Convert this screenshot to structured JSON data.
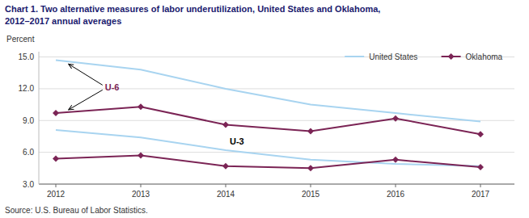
{
  "chart_data": {
    "type": "line",
    "title": "Chart 1. Two alternative measures of labor underutilization, United States and Oklahoma,",
    "subtitle": "2012–2017  annual averages",
    "y_label": "Percent",
    "source": "Source: U.S. Bureau of Labor Statistics.",
    "annotations": [
      "U-6",
      "U-3"
    ],
    "x": [
      2012,
      2013,
      2014,
      2015,
      2016,
      2017
    ],
    "series": [
      {
        "name": "United States",
        "color": "#a8d4f0",
        "values": [
          14.7,
          13.8,
          12.0,
          10.5,
          9.7,
          8.9
        ]
      },
      {
        "name": "United States",
        "color": "#a8d4f0",
        "values": [
          8.1,
          7.4,
          6.2,
          5.3,
          4.9,
          4.7
        ]
      },
      {
        "name": "Oklahoma",
        "color": "#7B2455",
        "marker": "diamond",
        "values": [
          9.7,
          10.3,
          8.6,
          8.0,
          9.2,
          7.7
        ]
      },
      {
        "name": "Oklahoma",
        "color": "#7B2455",
        "marker": "diamond",
        "values": [
          5.4,
          5.7,
          4.7,
          4.5,
          5.3,
          4.6
        ]
      }
    ],
    "xlim": [
      2011.8,
      2017.4
    ],
    "xticks": [
      2012,
      2013,
      2014,
      2015,
      2016,
      2017
    ],
    "ylim": [
      3.0,
      15.5
    ],
    "yticks": [
      {
        "value": 3.0,
        "label": "3.0"
      },
      {
        "value": 6.0,
        "label": "6.0"
      },
      {
        "value": 9.0,
        "label": "9.0"
      },
      {
        "value": 12.0,
        "label": "12.0"
      },
      {
        "value": 15.0,
        "label": "15.0"
      }
    ],
    "grid": true,
    "legend": "upper right"
  }
}
